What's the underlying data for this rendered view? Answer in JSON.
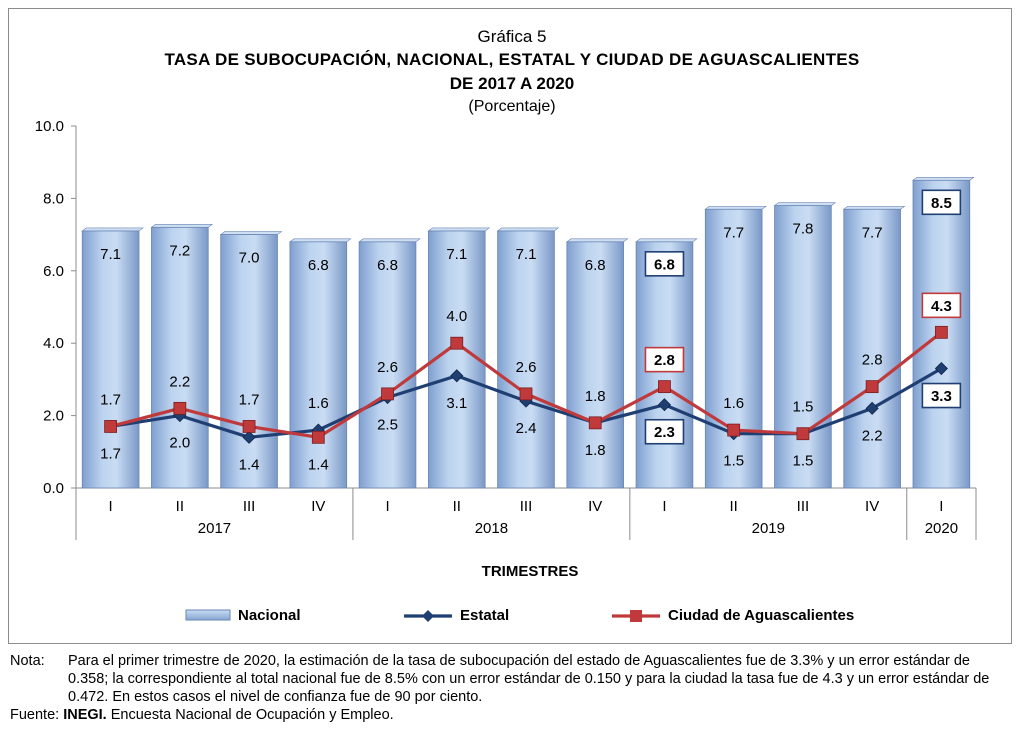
{
  "header": {
    "graph_number": "Gráfica 5",
    "title_line1": "TASA DE SUBOCUPACIÓN,  NACIONAL,  ESTATAL  Y CIUDAD  DE  AGUASCALIENTES",
    "title_line2": "DE 2017  A 2020",
    "unit": "(Porcentaje)"
  },
  "chart_data": {
    "type": "bar",
    "ylim": [
      0,
      10
    ],
    "yticks": [
      "0.0",
      "2.0",
      "4.0",
      "6.0",
      "8.0",
      "10.0"
    ],
    "xlabel": "TRIMESTRES",
    "categories": [
      "I",
      "II",
      "III",
      "IV",
      "I",
      "II",
      "III",
      "IV",
      "I",
      "II",
      "III",
      "IV",
      "I"
    ],
    "years": [
      {
        "label": "2017",
        "count": 4
      },
      {
        "label": "2018",
        "count": 4
      },
      {
        "label": "2019",
        "count": 4
      },
      {
        "label": "2020",
        "count": 1
      }
    ],
    "series": [
      {
        "name": "Nacional",
        "kind": "bar",
        "color": "#a8c4e6",
        "values": [
          7.1,
          7.2,
          7.0,
          6.8,
          6.8,
          7.1,
          7.1,
          6.8,
          6.8,
          7.7,
          7.8,
          7.7,
          8.5
        ],
        "labels": [
          "7.1",
          "7.2",
          "7.0",
          "6.8",
          "6.8",
          "7.1",
          "7.1",
          "6.8",
          "6.8",
          "7.7",
          "7.8",
          "7.7",
          "8.5"
        ],
        "boxed": [
          8,
          12
        ]
      },
      {
        "name": "Estatal",
        "kind": "line",
        "color": "#1f3f73",
        "values": [
          1.7,
          2.0,
          1.4,
          1.6,
          2.5,
          3.1,
          2.4,
          1.8,
          2.3,
          1.5,
          1.5,
          2.2,
          3.3
        ],
        "labels": [
          "1.7",
          "2.0",
          "1.4",
          "1.6",
          "2.5",
          "3.1",
          "2.4",
          "1.8",
          "2.3",
          "1.5",
          "1.5",
          "2.2",
          "3.3"
        ],
        "boxed": [
          8,
          12
        ]
      },
      {
        "name": "Ciudad de Aguascalientes",
        "kind": "line",
        "color": "#c0393b",
        "values": [
          1.7,
          2.2,
          1.7,
          1.4,
          2.6,
          4.0,
          2.6,
          1.8,
          2.8,
          1.6,
          1.5,
          2.8,
          4.3
        ],
        "labels": [
          "1.7",
          "2.2",
          "1.7",
          "1.4",
          "2.6",
          "4.0",
          "2.6",
          "1.8",
          "2.8",
          "1.6",
          "1.5",
          "2.8",
          "4.3"
        ],
        "boxed": [
          8,
          12
        ]
      }
    ]
  },
  "footer": {
    "note_label": "Nota:",
    "note_text": "Para el primer trimestre de 2020, la estimación de la tasa de subocupación del estado de Aguascalientes fue de 3.3% y un error estándar de 0.358; la correspondiente al total nacional fue de 8.5% con un error estándar de 0.150 y para la ciudad la tasa fue de 4.3 y un error estándar de 0.472. En estos casos el nivel de confianza fue de 90 por ciento.",
    "source_label": "Fuente:",
    "source_org": "INEGI.",
    "source_text": " Encuesta Nacional de Ocupación y Empleo."
  }
}
